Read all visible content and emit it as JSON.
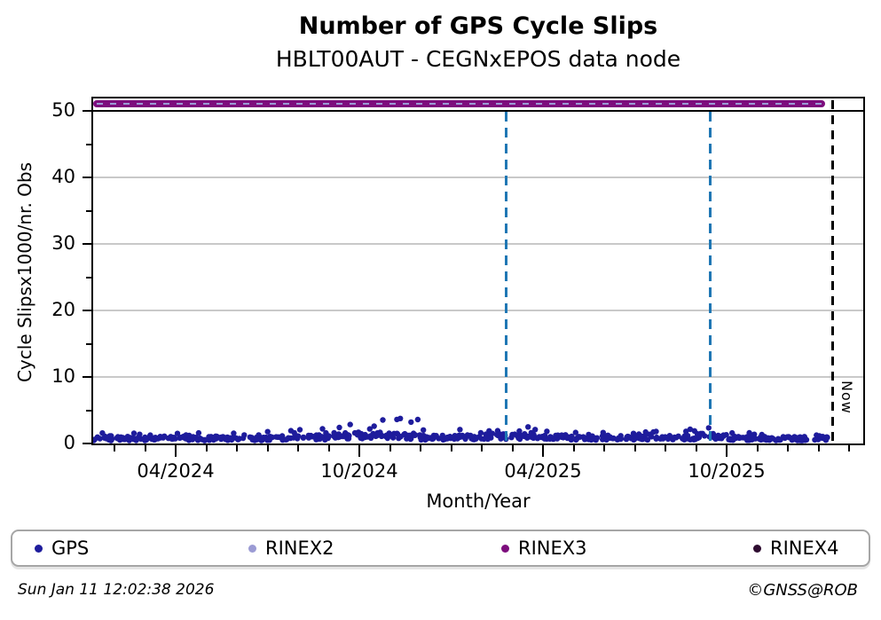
{
  "header": {
    "title": "Number of GPS Cycle Slips",
    "subtitle": "HBLT00AUT - CEGNxEPOS data node"
  },
  "footer": {
    "timestamp": "Sun Jan 11 12:02:38 2026",
    "copyright": "©GNSS@ROB"
  },
  "legend": {
    "items": [
      {
        "label": "GPS",
        "color": "#1e1c9c"
      },
      {
        "label": "RINEX2",
        "color": "#9b9bd4"
      },
      {
        "label": "RINEX3",
        "color": "#7d0d7d"
      },
      {
        "label": "RINEX4",
        "color": "#2e0b30"
      }
    ]
  },
  "chart_data": {
    "type": "scatter",
    "title": "Number of GPS Cycle Slips",
    "subtitle": "HBLT00AUT - CEGNxEPOS data node",
    "xlabel": "Month/Year",
    "ylabel": "Cycle Slipsx1000/nr. Obs",
    "ylim": [
      0,
      52
    ],
    "grid": "horizontal-gray",
    "yticks": [
      0,
      10,
      20,
      30,
      40,
      50
    ],
    "y_minor_ticks": [
      5,
      15,
      25,
      35,
      45
    ],
    "black_line_value": 50,
    "xticks": [
      {
        "label": "04/2024",
        "f": 0.1071
      },
      {
        "label": "10/2024",
        "f": 0.3456
      },
      {
        "label": "04/2025",
        "f": 0.5841
      },
      {
        "label": "10/2025",
        "f": 0.8226
      }
    ],
    "x_minor_start": 0.0277,
    "x_minor_step": 0.03975,
    "now_line": {
      "f": 0.96,
      "label": "Now",
      "color": "#000000",
      "style": "dashed"
    },
    "event_lines": {
      "color": "#1f77b4",
      "style": "dashed",
      "f": [
        0.536,
        0.801
      ]
    },
    "rinex_band": {
      "value": 51,
      "start_f": 0.0,
      "end_f": 0.951,
      "color": "#7d0d7d",
      "dash_color": "#9b9bd4",
      "note": "RINEX3 marker line with lighter RINEX2 dashes, constant at ~51 until Now"
    },
    "gps_series": {
      "name": "GPS",
      "color": "#1e1c9c",
      "marker_px": 6.4,
      "seed": 42,
      "points_per_month": 26,
      "monthly": [
        {
          "month": "01/2024",
          "mean": 0.8,
          "max": 1.6
        },
        {
          "month": "02/2024",
          "mean": 0.8,
          "max": 1.7
        },
        {
          "month": "03/2024",
          "mean": 0.85,
          "max": 2.0
        },
        {
          "month": "04/2024",
          "mean": 0.8,
          "max": 1.6
        },
        {
          "month": "05/2024",
          "mean": 0.85,
          "max": 1.9
        },
        {
          "month": "06/2024",
          "mean": 0.8,
          "max": 1.7
        },
        {
          "month": "07/2024",
          "mean": 0.9,
          "max": 2.0
        },
        {
          "month": "08/2024",
          "mean": 1.0,
          "max": 2.6
        },
        {
          "month": "09/2024",
          "mean": 1.3,
          "max": 3.8
        },
        {
          "month": "10/2024",
          "mean": 1.3,
          "max": 3.6
        },
        {
          "month": "11/2024",
          "mean": 1.2,
          "max": 3.9
        },
        {
          "month": "12/2024",
          "mean": 0.95,
          "max": 2.2
        },
        {
          "month": "01/2025",
          "mean": 1.0,
          "max": 2.2
        },
        {
          "month": "02/2025",
          "mean": 1.2,
          "max": 2.6
        },
        {
          "month": "03/2025",
          "mean": 1.15,
          "max": 2.6
        },
        {
          "month": "04/2025",
          "mean": 1.0,
          "max": 2.2
        },
        {
          "month": "05/2025",
          "mean": 0.9,
          "max": 1.8
        },
        {
          "month": "06/2025",
          "mean": 0.85,
          "max": 1.6
        },
        {
          "month": "07/2025",
          "mean": 0.9,
          "max": 1.8
        },
        {
          "month": "08/2025",
          "mean": 1.0,
          "max": 2.2
        },
        {
          "month": "09/2025",
          "mean": 1.2,
          "max": 3.0
        },
        {
          "month": "10/2025",
          "mean": 0.85,
          "max": 1.6
        },
        {
          "month": "11/2025",
          "mean": 0.8,
          "max": 1.5
        },
        {
          "month": "12/2025",
          "mean": 0.8,
          "max": 1.4
        },
        {
          "month": "01/2026",
          "mean": 0.8,
          "max": 1.2
        }
      ]
    }
  },
  "style": {
    "grid_color": "#c9c9c9",
    "frame_color": "#000000"
  }
}
